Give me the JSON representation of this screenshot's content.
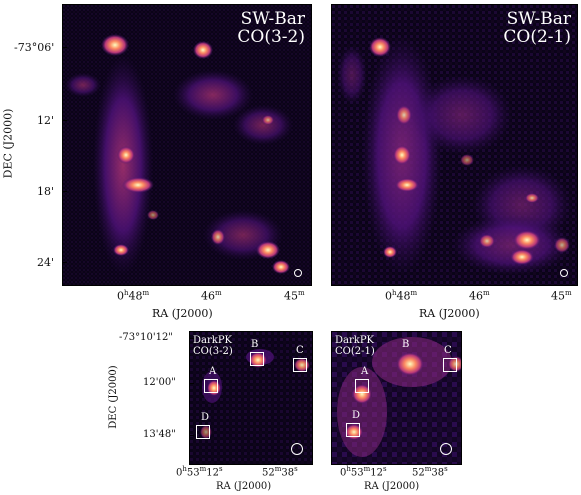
{
  "top_left": {
    "title_line1": "SW-Bar",
    "title_line2": "CO(3-2)"
  },
  "top_right": {
    "title_line1": "SW-Bar",
    "title_line2": "CO(2-1)"
  },
  "top_axes": {
    "ylabel": "DEC (J2000)",
    "xlabel": "RA (J2000)",
    "yticks": [
      "-73°06'",
      "12'",
      "18'",
      "24'"
    ],
    "xticks_main": [
      "0",
      "48",
      "46",
      "45"
    ],
    "xticks_units": [
      "h",
      "m",
      "m",
      "m"
    ]
  },
  "bottom_left": {
    "title_line1": "DarkPK",
    "title_line2": "CO(3-2)"
  },
  "bottom_right": {
    "title_line1": "DarkPK",
    "title_line2": "CO(2-1)"
  },
  "bottom_axes": {
    "ylabel": "DEC (J2000)",
    "xlabel": "RA (J2000)",
    "yticks": [
      "-73°10'12\"",
      "12'00\"",
      "13'48\""
    ],
    "xtick1_a": "0",
    "xtick1_b": "h",
    "xtick1_c": "53",
    "xtick1_d": "m",
    "xtick1_e": "12",
    "xtick1_f": "s",
    "xtick2_a": "52",
    "xtick2_b": "m",
    "xtick2_c": "38",
    "xtick2_d": "s"
  },
  "region_labels": {
    "A": "A",
    "B": "B",
    "C": "C",
    "D": "D"
  },
  "colormap": {
    "background": "#0a0318",
    "low": "#3b0f70",
    "mid": "#b73779",
    "high": "#fc8961",
    "peak": "#fcfdbf"
  }
}
